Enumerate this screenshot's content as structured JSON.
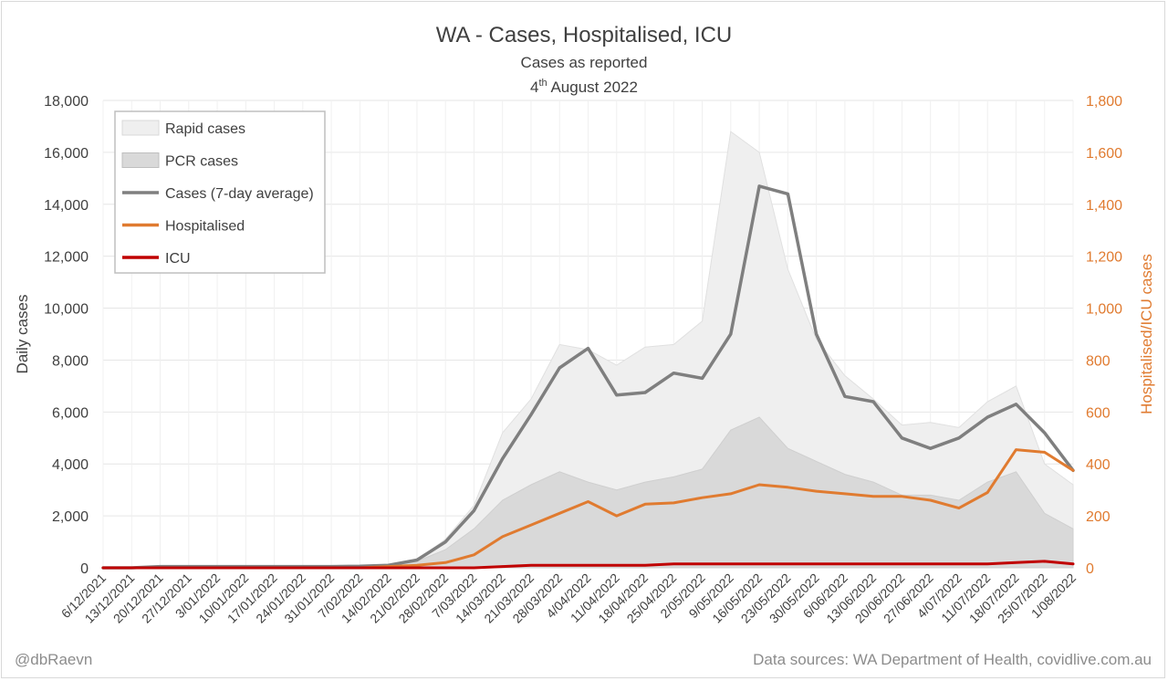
{
  "chart_data": {
    "type": "area",
    "title": "WA - Cases, Hospitalised, ICU",
    "subtitle": "Cases as reported",
    "date_label": {
      "prefix": "4",
      "suffix": "th",
      "rest": " August 2022"
    },
    "ylabel": "Daily cases",
    "y2label": "Hospitalised/ICU cases",
    "ylim": [
      0,
      18000
    ],
    "y2lim": [
      0,
      1800
    ],
    "yticks": [
      "0",
      "2,000",
      "4,000",
      "6,000",
      "8,000",
      "10,000",
      "12,000",
      "14,000",
      "16,000",
      "18,000"
    ],
    "y2ticks": [
      "0",
      "200",
      "400",
      "600",
      "800",
      "1,000",
      "1,200",
      "1,400",
      "1,600",
      "1,800"
    ],
    "x": [
      "6/12/2021",
      "13/12/2021",
      "20/12/2021",
      "27/12/2021",
      "3/01/2022",
      "10/01/2022",
      "17/01/2022",
      "24/01/2022",
      "31/01/2022",
      "7/02/2022",
      "14/02/2022",
      "21/02/2022",
      "28/02/2022",
      "7/03/2022",
      "14/03/2022",
      "21/03/2022",
      "28/03/2022",
      "4/04/2022",
      "11/04/2022",
      "18/04/2022",
      "25/04/2022",
      "2/05/2022",
      "9/05/2022",
      "16/05/2022",
      "23/05/2022",
      "30/05/2022",
      "6/06/2022",
      "13/06/2022",
      "20/06/2022",
      "27/06/2022",
      "4/07/2022",
      "11/07/2022",
      "18/07/2022",
      "25/07/2022",
      "1/08/2022"
    ],
    "grid": true,
    "legend_position": "top-left",
    "series": [
      {
        "name": "Rapid cases",
        "axis": "left",
        "style": "area",
        "color": "#efefef",
        "values": [
          0,
          0,
          0,
          0,
          0,
          0,
          0,
          0,
          0,
          0,
          30,
          300,
          1100,
          2400,
          5200,
          6500,
          8600,
          8400,
          7800,
          8500,
          8600,
          9500,
          16800,
          16000,
          11500,
          8800,
          7400,
          6500,
          5500,
          5600,
          5400,
          6400,
          7000,
          4000,
          3200
        ]
      },
      {
        "name": "PCR cases",
        "axis": "left",
        "style": "area",
        "color": "#d9d9d9",
        "values": [
          0,
          0,
          0,
          0,
          0,
          0,
          0,
          0,
          0,
          0,
          60,
          250,
          700,
          1500,
          2600,
          3200,
          3700,
          3300,
          3000,
          3300,
          3500,
          3800,
          5300,
          5800,
          4600,
          4100,
          3600,
          3300,
          2800,
          2800,
          2600,
          3300,
          3700,
          2100,
          1500
        ]
      },
      {
        "name": "Cases (7-day average)",
        "axis": "left",
        "style": "line",
        "color": "#7f7f7f",
        "values": [
          0,
          0,
          50,
          50,
          50,
          50,
          50,
          50,
          50,
          60,
          100,
          300,
          1000,
          2200,
          4200,
          5900,
          7700,
          8450,
          6650,
          6750,
          7500,
          7300,
          9000,
          14700,
          14400,
          9000,
          6600,
          6400,
          5000,
          4600,
          5000,
          5800,
          6300,
          5200,
          3750
        ]
      },
      {
        "name": "Hospitalised",
        "axis": "right",
        "style": "line",
        "color": "#E07B30",
        "values": [
          0,
          0,
          0,
          0,
          0,
          0,
          0,
          0,
          0,
          0,
          5,
          10,
          20,
          50,
          120,
          165,
          210,
          255,
          200,
          245,
          250,
          270,
          285,
          320,
          310,
          295,
          285,
          275,
          275,
          260,
          230,
          290,
          455,
          445,
          375
        ]
      },
      {
        "name": "ICU",
        "axis": "right",
        "style": "line",
        "color": "#C00000",
        "values": [
          0,
          0,
          0,
          0,
          0,
          0,
          0,
          0,
          0,
          0,
          0,
          0,
          0,
          0,
          5,
          10,
          10,
          10,
          10,
          10,
          15,
          15,
          15,
          15,
          15,
          15,
          15,
          15,
          15,
          15,
          15,
          15,
          20,
          25,
          15
        ]
      }
    ]
  },
  "footer": {
    "credit": "@dbRaevn",
    "sources": "Data sources: WA Department of Health, covidlive.com.au"
  }
}
